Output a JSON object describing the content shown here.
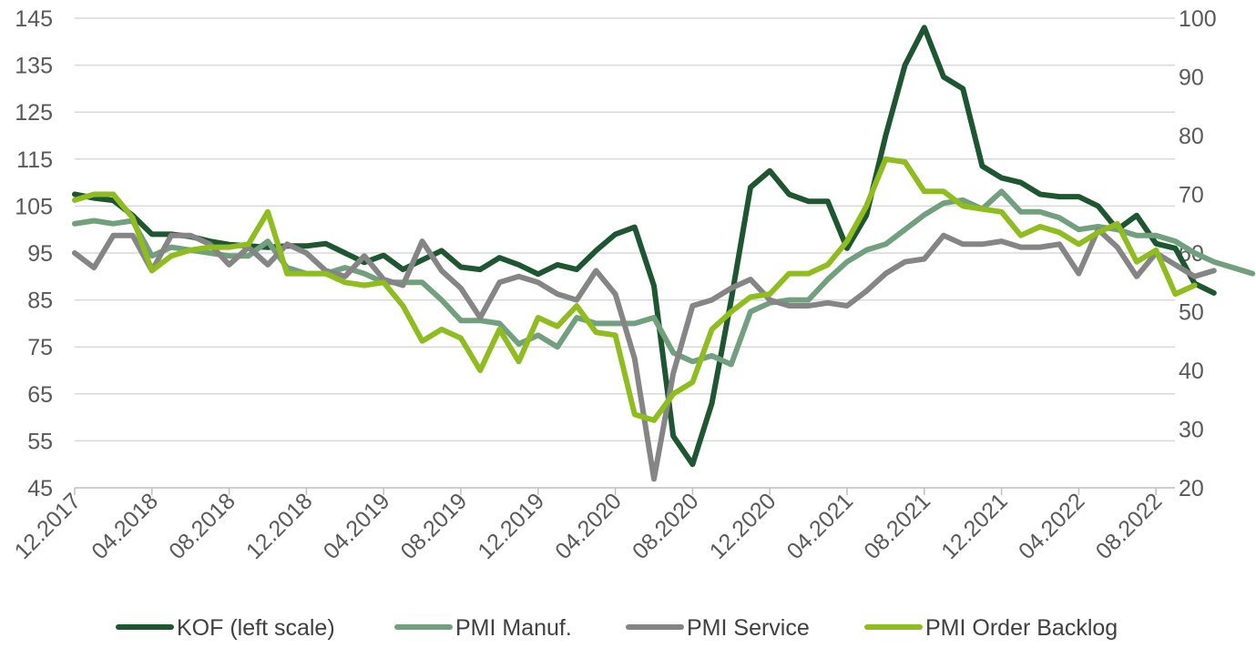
{
  "chart_data": {
    "type": "line",
    "title": "",
    "xlabel": "",
    "ylabel": "",
    "x_tick_labels": [
      "12.2017",
      "04.2018",
      "08.2018",
      "12.2018",
      "04.2019",
      "08.2019",
      "12.2019",
      "04.2020",
      "08.2020",
      "12.2020",
      "04.2021",
      "08.2021",
      "12.2021",
      "04.2022",
      "08.2022"
    ],
    "y_left": {
      "min": 45,
      "max": 145,
      "ticks": [
        "45",
        "55",
        "65",
        "75",
        "85",
        "95",
        "105",
        "115",
        "125",
        "135",
        "145"
      ]
    },
    "y_right": {
      "min": 20,
      "max": 100,
      "ticks": [
        "20",
        "30",
        "40",
        "50",
        "60",
        "70",
        "80",
        "90",
        "100"
      ]
    },
    "grid": true,
    "legend_position": "bottom",
    "months_start": "12.2017",
    "series": [
      {
        "name": "KOF (left scale)",
        "axis": "left",
        "color": "#1e5631",
        "values": [
          107.5,
          106.7,
          106.2,
          103,
          99,
          99,
          98.5,
          97.5,
          96.8,
          96.5,
          96.2,
          96.5,
          96.5,
          97,
          95,
          93,
          94.5,
          91.5,
          93.5,
          95.5,
          92,
          91.5,
          94,
          92.5,
          90.5,
          92.5,
          91.5,
          95.5,
          99,
          100.5,
          88,
          56,
          50,
          63,
          85,
          109,
          112.5,
          107.5,
          106,
          106,
          96,
          103,
          120,
          135,
          143,
          132.5,
          130,
          113.5,
          111,
          110,
          107.5,
          107,
          107,
          105,
          100,
          103,
          97,
          96,
          88.5,
          86.5
        ]
      },
      {
        "name": "PMI Manuf.",
        "axis": "right",
        "color": "#72a07e",
        "values": [
          65,
          65.5,
          65,
          65.5,
          59.5,
          61,
          60.5,
          60,
          59.5,
          59.5,
          62,
          57.5,
          56.5,
          56.5,
          57.5,
          56.5,
          55,
          55,
          55,
          52,
          48.5,
          48.5,
          48,
          44.5,
          46,
          44,
          49,
          48,
          48,
          48,
          49,
          43,
          41.5,
          42.5,
          41,
          50,
          51.5,
          52,
          52,
          55.5,
          58.5,
          60.5,
          61.5,
          64,
          66.5,
          68.5,
          69,
          67.5,
          70.5,
          67,
          67,
          66,
          64,
          64.5,
          64,
          63,
          63,
          62,
          60,
          58.5,
          57.5,
          56.5
        ]
      },
      {
        "name": "PMI Service",
        "axis": "right",
        "color": "#858585",
        "values": [
          60,
          57.5,
          63,
          63,
          57,
          63,
          63,
          61.5,
          58,
          61,
          58,
          61.5,
          60,
          57,
          56,
          59.5,
          55.5,
          54.5,
          62,
          57,
          54,
          49,
          55,
          56,
          55,
          53,
          52,
          57,
          53,
          42,
          21.5,
          39.5,
          51,
          52,
          54,
          55.5,
          52,
          51,
          51,
          51.5,
          51,
          53.5,
          56.5,
          58.5,
          59,
          63,
          61.5,
          61.5,
          62,
          61,
          61,
          61.5,
          56.5,
          64,
          61,
          56,
          60,
          58,
          56,
          57
        ]
      },
      {
        "name": "PMI Order Backlog",
        "axis": "right",
        "color": "#8fbc1f",
        "values": [
          69,
          70,
          70,
          66,
          57,
          59.5,
          60.5,
          61,
          61,
          61.5,
          67,
          56.5,
          56.5,
          56.5,
          55,
          54.5,
          55,
          51,
          45,
          47,
          45.5,
          40,
          47,
          41.5,
          49,
          47.5,
          51,
          46.5,
          46,
          32.5,
          31.5,
          36,
          38,
          47,
          50,
          52.5,
          53,
          56.5,
          56.5,
          58,
          62,
          68,
          76,
          75.5,
          70.5,
          70.5,
          68,
          67.5,
          67,
          63,
          64.5,
          63.5,
          61.5,
          63.5,
          65,
          58.5,
          60.5,
          53,
          54.5
        ]
      }
    ]
  }
}
